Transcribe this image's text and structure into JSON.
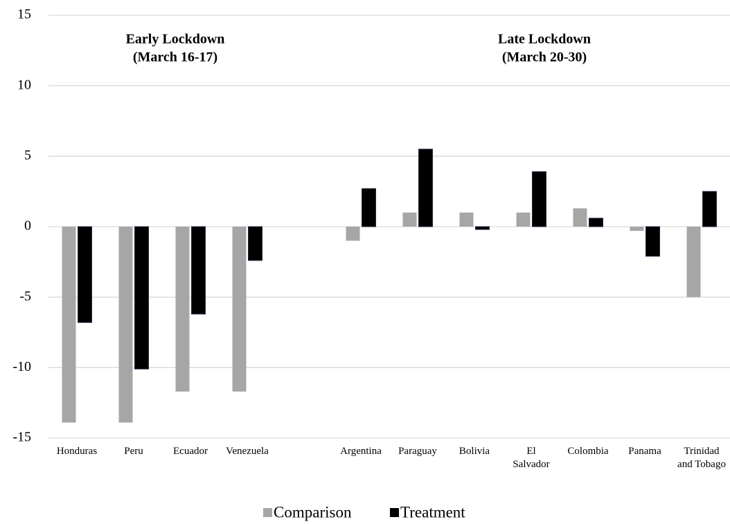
{
  "chart_data": {
    "type": "bar",
    "annotations": [
      [
        "Early Lockdown",
        "(March 16-17)"
      ],
      [
        "Late Lockdown",
        "(March 20-30)"
      ]
    ],
    "categories": [
      "Honduras",
      "Peru",
      "Ecuador",
      "Venezuela",
      null,
      "Argentina",
      "Paraguay",
      "Bolivia",
      "El Salvador",
      "Colombia",
      "Panama",
      "Trinidad and Tobago"
    ],
    "series": [
      {
        "name": "Comparison",
        "color": "#a6a6a6",
        "values": [
          -13.9,
          -13.9,
          -11.7,
          -11.7,
          null,
          -1,
          1,
          1,
          1,
          1.3,
          -0.3,
          -5
        ]
      },
      {
        "name": "Treatment",
        "color": "#000000",
        "values": [
          -6.8,
          -10.1,
          -6.2,
          -2.4,
          null,
          2.7,
          5.5,
          -0.2,
          3.9,
          0.6,
          -2.1,
          2.5
        ]
      }
    ],
    "ylim": [
      -15,
      15
    ],
    "yticks": [
      -15,
      -10,
      -5,
      0,
      5,
      10,
      15
    ],
    "grid": true,
    "legend": "bottom"
  }
}
